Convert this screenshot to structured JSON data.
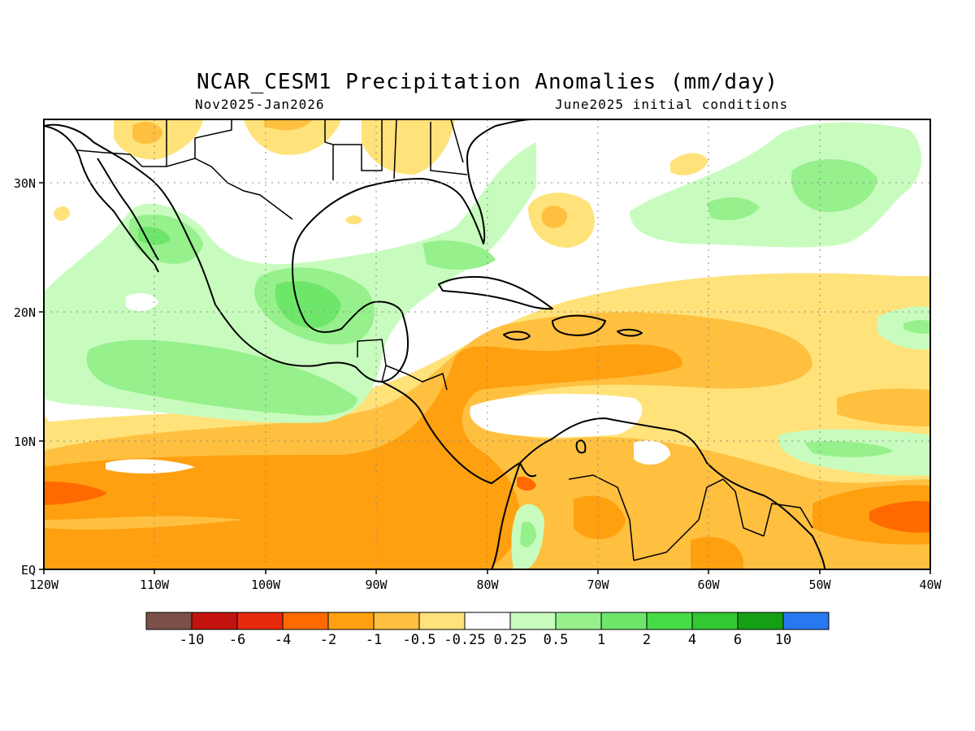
{
  "title": "NCAR_CESM1 Precipitation Anomalies (mm/day)",
  "subtitle_left": "Nov2025-Jan2026",
  "subtitle_right": "June2025 initial conditions",
  "axes": {
    "lon_labels": [
      "120W",
      "110W",
      "100W",
      "90W",
      "80W",
      "70W",
      "60W",
      "50W",
      "40W"
    ],
    "lat_labels": [
      "EQ",
      "10N",
      "20N",
      "30N"
    ]
  },
  "colorbar": {
    "colors": [
      "#7a5048",
      "#c4130f",
      "#e82a0c",
      "#ff6a00",
      "#ffa010",
      "#ffc040",
      "#ffe27a",
      "#ffffff",
      "#c8fcbe",
      "#96f08c",
      "#6ee66a",
      "#46dc46",
      "#32c832",
      "#14a014",
      "#2878f0"
    ],
    "labels": [
      "-10",
      "-6",
      "-4",
      "-2",
      "-1",
      "-0.5",
      "-0.25",
      "0.25",
      "0.5",
      "1",
      "2",
      "4",
      "6",
      "10"
    ]
  },
  "colors": {
    "frame": "#000000",
    "grid": "#888888"
  }
}
